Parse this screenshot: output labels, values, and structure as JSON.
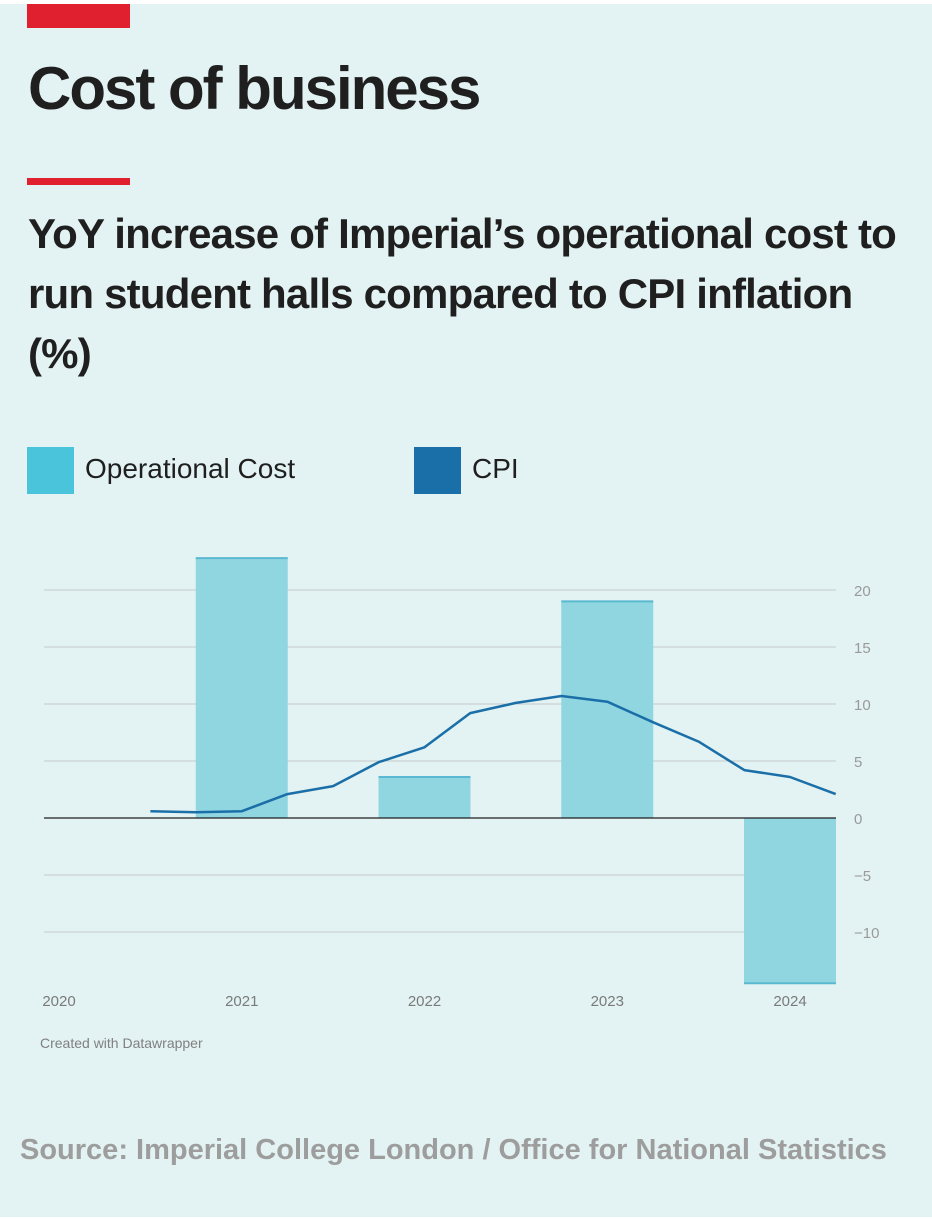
{
  "header": {
    "headline": "Cost of business",
    "subtitle": "YoY increase of Imperial’s operational cost to run student halls compared to CPI inflation (%)"
  },
  "legend": [
    {
      "label": "Operational Cost",
      "color": "#4ac4db"
    },
    {
      "label": "CPI",
      "color": "#1b6fa8"
    }
  ],
  "chart_data": {
    "type": "bar",
    "title": "YoY increase of Imperial’s operational cost to run student halls compared to CPI inflation (%)",
    "x_ticks": [
      "2020",
      "2021",
      "2022",
      "2023",
      "2024"
    ],
    "xlim": [
      2020,
      2024.4
    ],
    "ylim": [
      -14.5,
      23
    ],
    "y_ticks": [
      20,
      15,
      10,
      5,
      0,
      -5,
      -10
    ],
    "y_tick_labels": [
      "20",
      "15",
      "10",
      "5",
      "0",
      "−5",
      "−10"
    ],
    "y_axis_position": "right",
    "grid": true,
    "legend_position": "top-left",
    "series": [
      {
        "name": "Operational Cost",
        "type": "bar",
        "color": "#90d6e1",
        "edge_color": "#5ab9d0",
        "x": [
          2021,
          2022,
          2023,
          2024
        ],
        "values": [
          22.8,
          3.6,
          19.0,
          -14.5
        ]
      },
      {
        "name": "CPI",
        "type": "line",
        "color": "#1b6fa8",
        "x": [
          2020.5,
          2020.75,
          2021.0,
          2021.25,
          2021.5,
          2021.75,
          2022.0,
          2022.25,
          2022.5,
          2022.75,
          2023.0,
          2023.25,
          2023.5,
          2023.75,
          2024.0,
          2024.25
        ],
        "values": [
          0.6,
          0.5,
          0.6,
          2.1,
          2.8,
          4.9,
          6.2,
          9.2,
          10.1,
          10.7,
          10.2,
          8.4,
          6.7,
          4.2,
          3.6,
          2.1
        ]
      }
    ]
  },
  "footer": {
    "credit": "Created with Datawrapper",
    "source": "Source: Imperial College London / Office for National Statistics"
  }
}
